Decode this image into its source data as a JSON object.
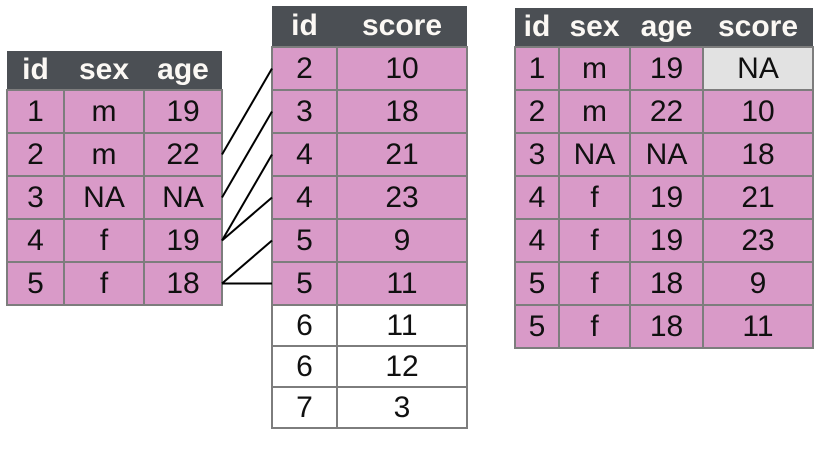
{
  "colors": {
    "header_bg": "#4b4f54",
    "header_text": "#fbf8f4",
    "cell_pink": "#d99ac8",
    "cell_white": "#ffffff",
    "cell_na_gray": "#e2e2e2",
    "border": "#7d7d7d",
    "cell_text": "#101010",
    "line": "#000000",
    "background": "#ffffff"
  },
  "left_table": {
    "columns": [
      "id",
      "sex",
      "age"
    ],
    "rows": [
      [
        "1",
        "m",
        "19"
      ],
      [
        "2",
        "m",
        "22"
      ],
      [
        "3",
        "NA",
        "NA"
      ],
      [
        "4",
        "f",
        "19"
      ],
      [
        "5",
        "f",
        "18"
      ]
    ]
  },
  "middle_table": {
    "columns": [
      "id",
      "score"
    ],
    "rows": [
      [
        "2",
        "10"
      ],
      [
        "3",
        "18"
      ],
      [
        "4",
        "21"
      ],
      [
        "4",
        "23"
      ],
      [
        "5",
        "9"
      ],
      [
        "5",
        "11"
      ],
      [
        "6",
        "11"
      ],
      [
        "6",
        "12"
      ],
      [
        "7",
        "3"
      ]
    ],
    "unmatched_row_indices": [
      6,
      7,
      8
    ]
  },
  "right_table": {
    "columns": [
      "id",
      "sex",
      "age",
      "score"
    ],
    "rows": [
      [
        "1",
        "m",
        "19",
        "NA"
      ],
      [
        "2",
        "m",
        "22",
        "10"
      ],
      [
        "3",
        "NA",
        "NA",
        "18"
      ],
      [
        "4",
        "f",
        "19",
        "21"
      ],
      [
        "4",
        "f",
        "19",
        "23"
      ],
      [
        "5",
        "f",
        "18",
        "9"
      ],
      [
        "5",
        "f",
        "18",
        "11"
      ]
    ],
    "na_cells": [
      {
        "row": 0,
        "col": 3
      }
    ]
  },
  "connections": [
    {
      "from_left_row": 1,
      "to_middle_row": 0
    },
    {
      "from_left_row": 2,
      "to_middle_row": 1
    },
    {
      "from_left_row": 3,
      "to_middle_row": 2
    },
    {
      "from_left_row": 3,
      "to_middle_row": 3
    },
    {
      "from_left_row": 4,
      "to_middle_row": 4
    },
    {
      "from_left_row": 4,
      "to_middle_row": 5
    }
  ]
}
